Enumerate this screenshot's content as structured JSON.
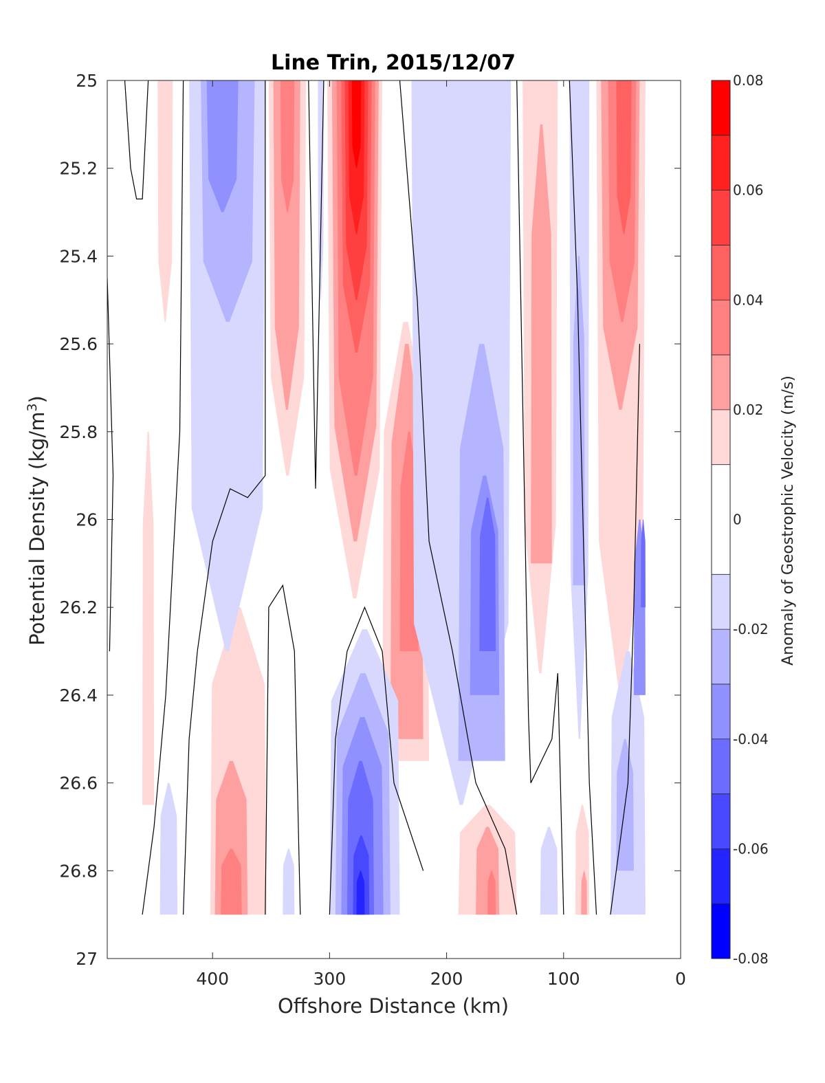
{
  "chart_data": {
    "type": "heatmap",
    "subtype": "filled-contour",
    "title": "Line Trin, 2015/12/07",
    "xlabel": "Offshore Distance (km)",
    "ylabel": "Potential Density (kg/m",
    "ylabel_sup": "3",
    "ylabel_close": ")",
    "xlim": [
      490,
      0
    ],
    "x_reversed": true,
    "ylim": [
      25,
      27
    ],
    "y_reversed": true,
    "xticks": [
      400,
      300,
      200,
      100,
      0
    ],
    "xtick_labels": [
      "400",
      "300",
      "200",
      "100",
      "0"
    ],
    "yticks": [
      25,
      25.2,
      25.4,
      25.6,
      25.8,
      26,
      26.2,
      26.4,
      26.6,
      26.8,
      27
    ],
    "ytick_labels": [
      "25",
      "25.2",
      "25.4",
      "25.6",
      "25.8",
      "26",
      "26.2",
      "26.4",
      "26.6",
      "26.8",
      "27"
    ],
    "zero_contour": "black",
    "colorbar": {
      "label": "Anomaly of Geostrophic Velocity (m/s)",
      "clim": [
        -0.08,
        0.08
      ],
      "ticks": [
        0.08,
        0.06,
        0.04,
        0.02,
        0,
        -0.02,
        -0.04,
        -0.06,
        -0.08
      ],
      "tick_labels": [
        "0.08",
        "0.06",
        "0.04",
        "0.02",
        "0",
        "-0.02",
        "-0.04",
        "-0.06",
        "-0.08"
      ],
      "levels": [
        {
          "min": 0.07,
          "max": 0.08,
          "color": "#ff0000"
        },
        {
          "min": 0.06,
          "max": 0.07,
          "color": "#ff2020"
        },
        {
          "min": 0.05,
          "max": 0.06,
          "color": "#ff4040"
        },
        {
          "min": 0.04,
          "max": 0.05,
          "color": "#ff6060"
        },
        {
          "min": 0.03,
          "max": 0.04,
          "color": "#ff8080"
        },
        {
          "min": 0.02,
          "max": 0.03,
          "color": "#ffa0a0"
        },
        {
          "min": 0.01,
          "max": 0.02,
          "color": "#ffd8d8"
        },
        {
          "min": -0.01,
          "max": 0.01,
          "color": "#ffffff"
        },
        {
          "min": -0.02,
          "max": -0.01,
          "color": "#d8d8ff"
        },
        {
          "min": -0.03,
          "max": -0.02,
          "color": "#b4b4ff"
        },
        {
          "min": -0.04,
          "max": -0.03,
          "color": "#9090ff"
        },
        {
          "min": -0.05,
          "max": -0.04,
          "color": "#6c6cff"
        },
        {
          "min": -0.06,
          "max": -0.05,
          "color": "#4848ff"
        },
        {
          "min": -0.07,
          "max": -0.06,
          "color": "#2424ff"
        },
        {
          "min": -0.08,
          "max": -0.07,
          "color": "#0000ff"
        }
      ]
    },
    "regions": [
      {
        "value": 0.015,
        "x": [
          460,
          450
        ],
        "y": [
          25.8,
          26.65
        ]
      },
      {
        "value": 0.015,
        "x": [
          447,
          434
        ],
        "y": [
          25,
          25.55
        ]
      },
      {
        "value": 0.015,
        "x": [
          402,
          354
        ],
        "y": [
          26.2,
          26.9
        ]
      },
      {
        "value": 0.025,
        "x": [
          398,
          370
        ],
        "y": [
          26.55,
          26.9
        ]
      },
      {
        "value": 0.035,
        "x": [
          393,
          375
        ],
        "y": [
          26.75,
          26.9
        ]
      },
      {
        "value": -0.015,
        "x": [
          420,
          355
        ],
        "y": [
          25,
          26.3
        ]
      },
      {
        "value": -0.025,
        "x": [
          410,
          364
        ],
        "y": [
          25,
          25.55
        ]
      },
      {
        "value": -0.035,
        "x": [
          405,
          378
        ],
        "y": [
          25,
          25.3
        ]
      },
      {
        "value": 0.015,
        "x": [
          352,
          320
        ],
        "y": [
          25,
          25.9
        ]
      },
      {
        "value": 0.025,
        "x": [
          348,
          325
        ],
        "y": [
          25,
          25.75
        ]
      },
      {
        "value": 0.035,
        "x": [
          342,
          330
        ],
        "y": [
          25,
          25.3
        ]
      },
      {
        "value": -0.015,
        "x": [
          445,
          430
        ],
        "y": [
          26.6,
          26.9
        ]
      },
      {
        "value": -0.015,
        "x": [
          340,
          330
        ],
        "y": [
          26.75,
          26.9
        ]
      },
      {
        "value": -0.015,
        "x": [
          310,
          305
        ],
        "y": [
          25,
          25.5
        ]
      },
      {
        "value": 0.015,
        "x": [
          302,
          255
        ],
        "y": [
          25,
          26.18
        ]
      },
      {
        "value": 0.025,
        "x": [
          298,
          258
        ],
        "y": [
          25,
          26.05
        ]
      },
      {
        "value": 0.035,
        "x": [
          294,
          261
        ],
        "y": [
          25,
          25.9
        ]
      },
      {
        "value": 0.045,
        "x": [
          290,
          264
        ],
        "y": [
          25,
          25.62
        ]
      },
      {
        "value": 0.055,
        "x": [
          287,
          267
        ],
        "y": [
          25,
          25.5
        ]
      },
      {
        "value": 0.065,
        "x": [
          284,
          270
        ],
        "y": [
          25,
          25.35
        ]
      },
      {
        "value": 0.075,
        "x": [
          281,
          273
        ],
        "y": [
          25,
          25.2
        ]
      },
      {
        "value": 0.015,
        "x": [
          255,
          215
        ],
        "y": [
          25.55,
          26.55
        ]
      },
      {
        "value": 0.025,
        "x": [
          248,
          220
        ],
        "y": [
          25.6,
          26.5
        ]
      },
      {
        "value": 0.035,
        "x": [
          240,
          224
        ],
        "y": [
          25.8,
          26.3
        ]
      },
      {
        "value": -0.015,
        "x": [
          300,
          240
        ],
        "y": [
          26.25,
          26.9
        ]
      },
      {
        "value": -0.025,
        "x": [
          295,
          248
        ],
        "y": [
          26.35,
          26.9
        ]
      },
      {
        "value": -0.035,
        "x": [
          290,
          254
        ],
        "y": [
          26.45,
          26.9
        ]
      },
      {
        "value": -0.045,
        "x": [
          285,
          262
        ],
        "y": [
          26.55,
          26.9
        ]
      },
      {
        "value": -0.055,
        "x": [
          280,
          266
        ],
        "y": [
          26.72,
          26.9
        ]
      },
      {
        "value": -0.065,
        "x": [
          277,
          270
        ],
        "y": [
          26.8,
          26.9
        ]
      },
      {
        "value": -0.015,
        "x": [
          230,
          145
        ],
        "y": [
          25,
          26.65
        ]
      },
      {
        "value": -0.025,
        "x": [
          190,
          150
        ],
        "y": [
          25.6,
          26.55
        ]
      },
      {
        "value": -0.035,
        "x": [
          180,
          155
        ],
        "y": [
          25.9,
          26.4
        ]
      },
      {
        "value": -0.045,
        "x": [
          172,
          158
        ],
        "y": [
          25.95,
          26.3
        ]
      },
      {
        "value": 0.015,
        "x": [
          190,
          140
        ],
        "y": [
          26.65,
          26.9
        ]
      },
      {
        "value": 0.025,
        "x": [
          175,
          155
        ],
        "y": [
          26.7,
          26.9
        ]
      },
      {
        "value": 0.035,
        "x": [
          165,
          158
        ],
        "y": [
          26.8,
          26.9
        ]
      },
      {
        "value": 0.015,
        "x": [
          135,
          105
        ],
        "y": [
          25,
          26.35
        ]
      },
      {
        "value": 0.025,
        "x": [
          128,
          110
        ],
        "y": [
          25.1,
          26.1
        ]
      },
      {
        "value": -0.015,
        "x": [
          120,
          105
        ],
        "y": [
          26.7,
          26.9
        ]
      },
      {
        "value": -0.015,
        "x": [
          95,
          78
        ],
        "y": [
          25,
          26.5
        ]
      },
      {
        "value": -0.025,
        "x": [
          92,
          82
        ],
        "y": [
          25.4,
          26.15
        ]
      },
      {
        "value": 0.015,
        "x": [
          90,
          78
        ],
        "y": [
          26.65,
          26.9
        ]
      },
      {
        "value": 0.025,
        "x": [
          85,
          80
        ],
        "y": [
          26.8,
          26.9
        ]
      },
      {
        "value": 0.015,
        "x": [
          72,
          30
        ],
        "y": [
          25,
          26.4
        ]
      },
      {
        "value": 0.025,
        "x": [
          68,
          35
        ],
        "y": [
          25,
          25.75
        ]
      },
      {
        "value": 0.035,
        "x": [
          62,
          38
        ],
        "y": [
          25,
          25.55
        ]
      },
      {
        "value": 0.045,
        "x": [
          55,
          42
        ],
        "y": [
          25,
          25.35
        ]
      },
      {
        "value": -0.015,
        "x": [
          60,
          30
        ],
        "y": [
          26.3,
          26.9
        ]
      },
      {
        "value": -0.025,
        "x": [
          55,
          40
        ],
        "y": [
          26.5,
          26.8
        ]
      },
      {
        "value": -0.035,
        "x": [
          40,
          30
        ],
        "y": [
          26.0,
          26.4
        ]
      },
      {
        "value": -0.045,
        "x": [
          34,
          30
        ],
        "y": [
          26.0,
          26.2
        ]
      }
    ],
    "zero_lines": [
      [
        [
          475,
          25
        ],
        [
          470,
          25.2
        ],
        [
          465,
          25.27
        ],
        [
          460,
          25.27
        ],
        [
          455,
          25
        ]
      ],
      [
        [
          490,
          25.45
        ],
        [
          485,
          25.9
        ],
        [
          488,
          26.3
        ]
      ],
      [
        [
          425,
          25
        ],
        [
          428,
          25.8
        ],
        [
          440,
          26.4
        ],
        [
          450,
          26.7
        ],
        [
          460,
          26.9
        ]
      ],
      [
        [
          355,
          25
        ],
        [
          355,
          25.9
        ],
        [
          370,
          25.95
        ],
        [
          385,
          25.93
        ],
        [
          400,
          26.05
        ],
        [
          413,
          26.3
        ],
        [
          420,
          26.5
        ],
        [
          425,
          26.9
        ]
      ],
      [
        [
          355,
          26.9
        ],
        [
          352,
          26.2
        ],
        [
          340,
          26.15
        ],
        [
          330,
          26.3
        ],
        [
          325,
          26.9
        ]
      ],
      [
        [
          318,
          25
        ],
        [
          312,
          25.93
        ],
        [
          305,
          25
        ]
      ],
      [
        [
          300,
          26.9
        ],
        [
          295,
          26.5
        ],
        [
          285,
          26.3
        ],
        [
          270,
          26.2
        ],
        [
          255,
          26.3
        ],
        [
          245,
          26.6
        ],
        [
          220,
          26.8
        ]
      ],
      [
        [
          240,
          25
        ],
        [
          225,
          25.5
        ],
        [
          215,
          26.05
        ],
        [
          195,
          26.3
        ],
        [
          175,
          26.6
        ],
        [
          150,
          26.75
        ],
        [
          140,
          26.9
        ]
      ],
      [
        [
          140,
          25
        ],
        [
          130,
          26.45
        ],
        [
          128,
          26.6
        ],
        [
          110,
          26.5
        ],
        [
          105,
          26.35
        ],
        [
          100,
          26.9
        ]
      ],
      [
        [
          95,
          25
        ],
        [
          88,
          25.5
        ],
        [
          78,
          26.6
        ],
        [
          72,
          26.9
        ]
      ],
      [
        [
          60,
          26.9
        ],
        [
          45,
          26.6
        ],
        [
          40,
          26.2
        ],
        [
          35,
          25.6
        ]
      ]
    ]
  }
}
